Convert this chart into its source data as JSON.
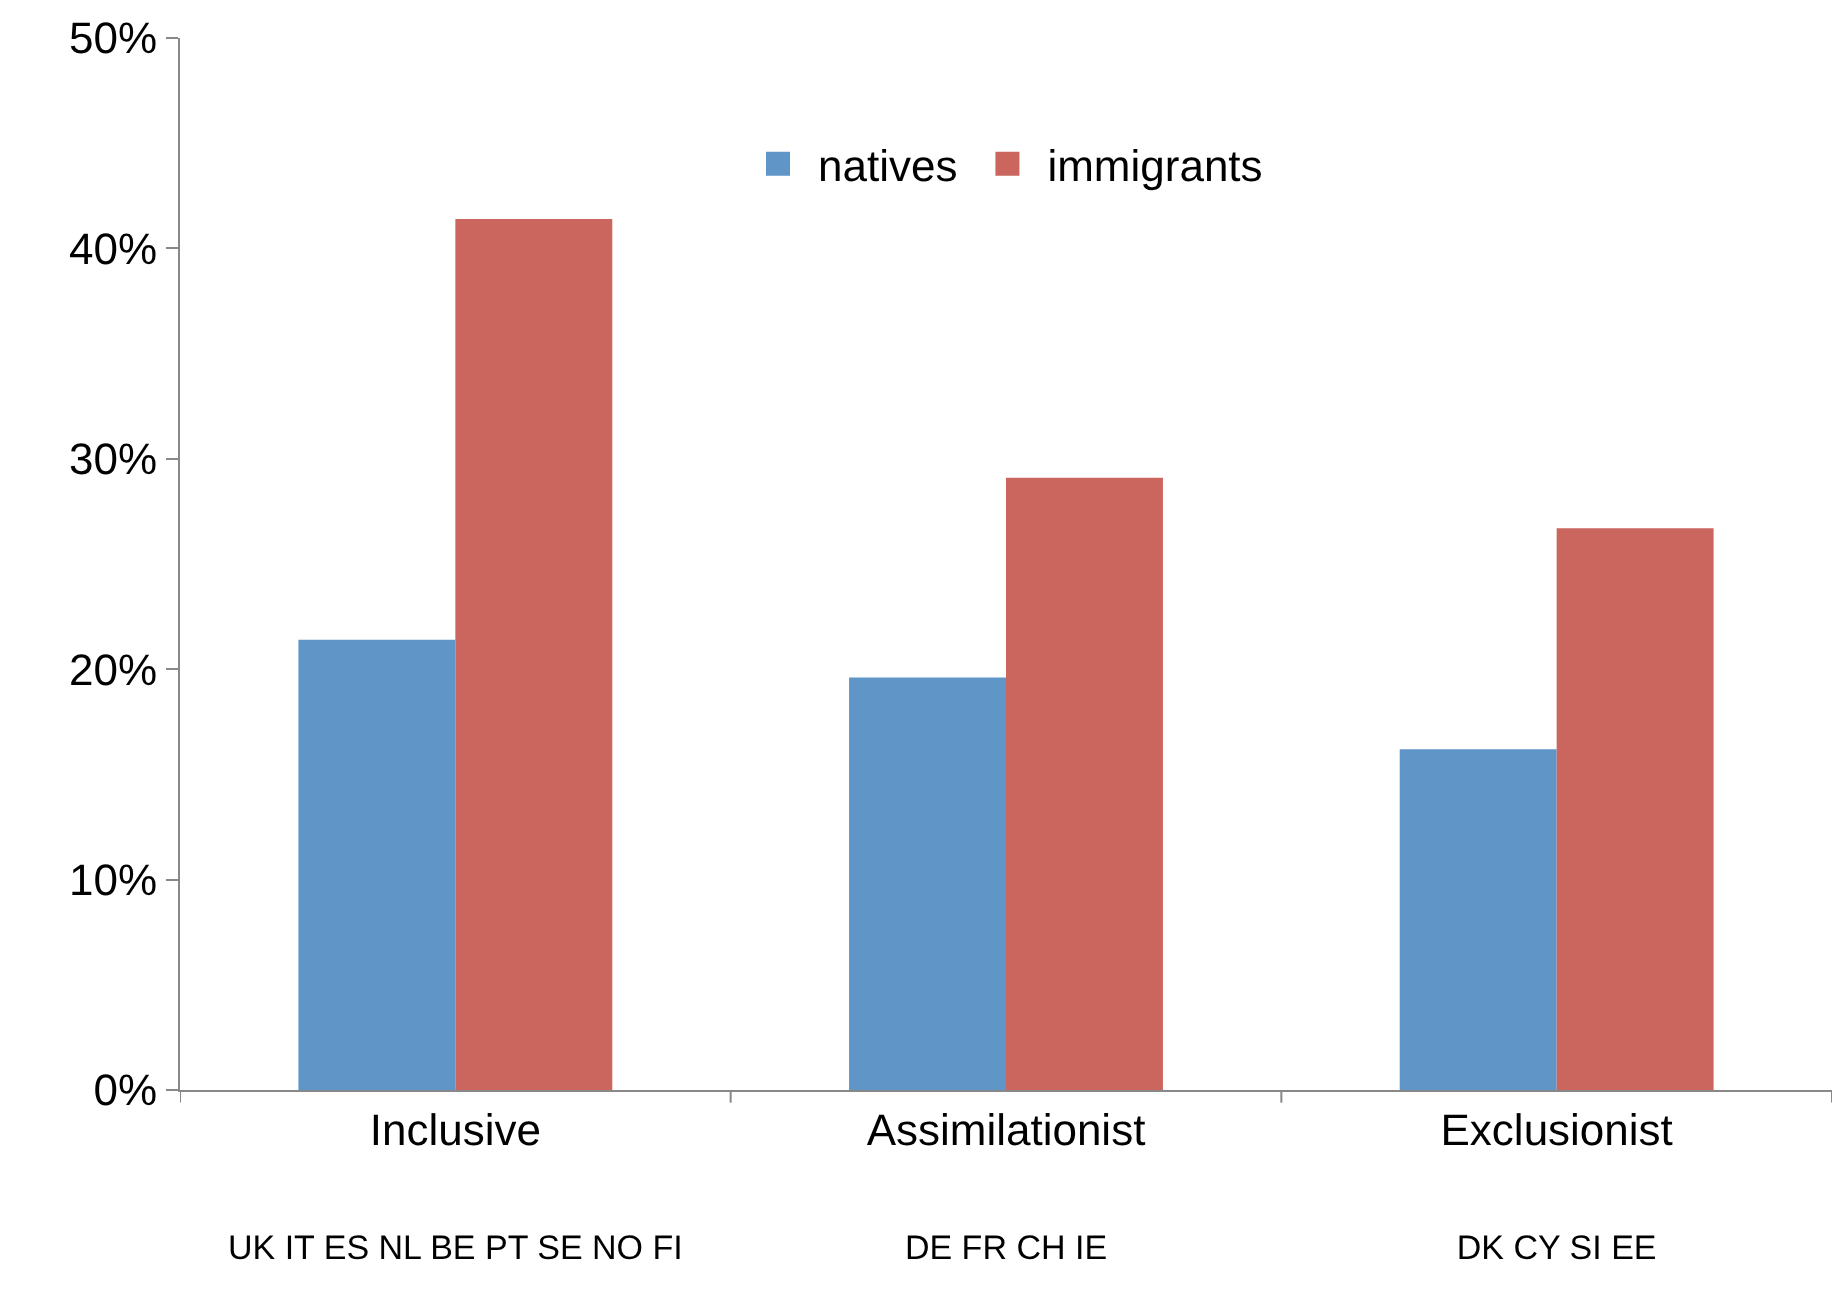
{
  "chart_data": {
    "type": "bar",
    "categories": [
      "Inclusive\nUK IT ES NL BE PT SE NO FI",
      "Assimilationist\nDE FR CH IE",
      "Exclusionist\nDK CY SI EE"
    ],
    "series": [
      {
        "name": "natives",
        "color": "#6095c8",
        "values": [
          21.4,
          19.6,
          16.2
        ]
      },
      {
        "name": "immigrants",
        "color": "#cb665e",
        "values": [
          41.4,
          29.1,
          26.7
        ]
      }
    ],
    "ylim": [
      0,
      50
    ],
    "yticks": [
      {
        "value": 0,
        "label": "0%"
      },
      {
        "value": 10,
        "label": "10%"
      },
      {
        "value": 20,
        "label": "20%"
      },
      {
        "value": 30,
        "label": "30%"
      },
      {
        "value": 40,
        "label": "40%"
      },
      {
        "value": 50,
        "label": "50%"
      }
    ],
    "legend": "top"
  }
}
